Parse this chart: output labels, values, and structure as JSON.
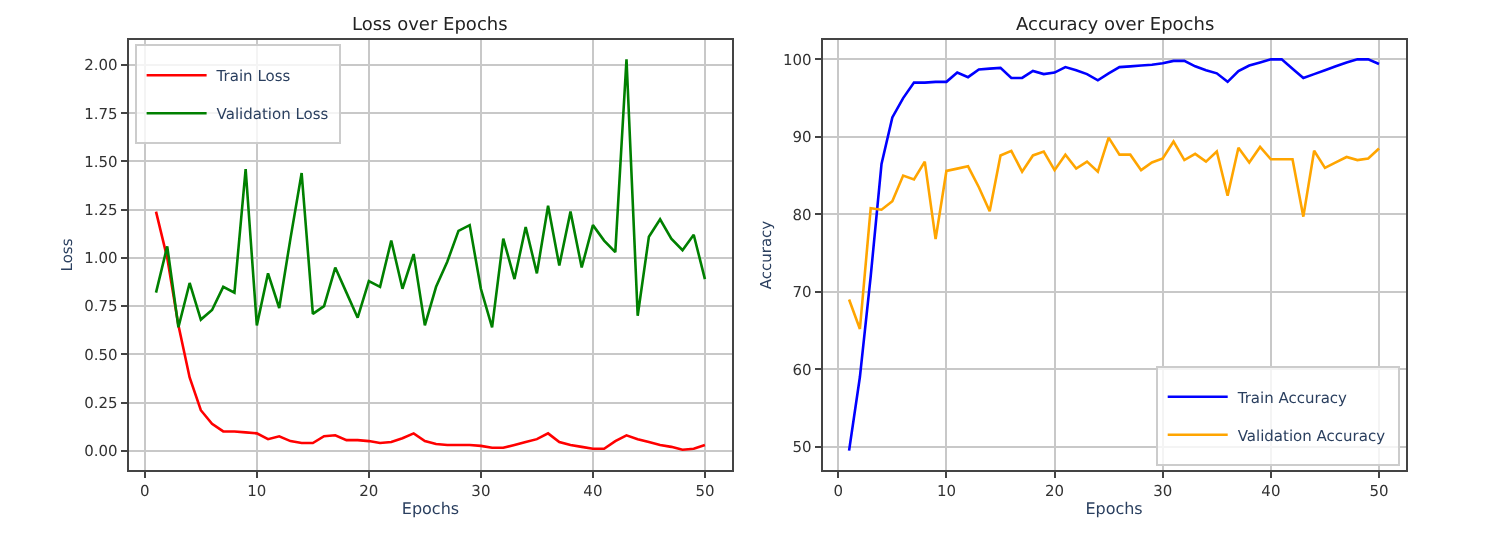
{
  "chart_data": [
    {
      "type": "line",
      "title": "Loss over Epochs",
      "xlabel": "Epochs",
      "ylabel": "Loss",
      "x": [
        1,
        2,
        3,
        4,
        5,
        6,
        7,
        8,
        9,
        10,
        11,
        12,
        13,
        14,
        15,
        16,
        17,
        18,
        19,
        20,
        21,
        22,
        23,
        24,
        25,
        26,
        27,
        28,
        29,
        30,
        31,
        32,
        33,
        34,
        35,
        36,
        37,
        38,
        39,
        40,
        41,
        42,
        43,
        44,
        45,
        46,
        47,
        48,
        49,
        50
      ],
      "series": [
        {
          "name": "Train Loss",
          "color": "#ff0000",
          "values": [
            1.24,
            1.0,
            0.65,
            0.38,
            0.21,
            0.14,
            0.1,
            0.1,
            0.095,
            0.09,
            0.06,
            0.075,
            0.05,
            0.04,
            0.04,
            0.075,
            0.08,
            0.055,
            0.055,
            0.05,
            0.04,
            0.045,
            0.065,
            0.09,
            0.05,
            0.035,
            0.03,
            0.03,
            0.03,
            0.025,
            0.015,
            0.015,
            0.03,
            0.045,
            0.06,
            0.09,
            0.045,
            0.03,
            0.02,
            0.01,
            0.01,
            0.05,
            0.08,
            0.06,
            0.045,
            0.03,
            0.02,
            0.005,
            0.01,
            0.03
          ]
        },
        {
          "name": "Validation Loss",
          "color": "#008000",
          "values": [
            0.82,
            1.06,
            0.64,
            0.87,
            0.68,
            0.73,
            0.85,
            0.82,
            1.46,
            0.65,
            0.92,
            0.74,
            1.1,
            1.44,
            0.71,
            0.75,
            0.95,
            0.82,
            0.69,
            0.88,
            0.85,
            1.09,
            0.84,
            1.02,
            0.65,
            0.85,
            0.98,
            1.14,
            1.17,
            0.84,
            0.64,
            1.1,
            0.89,
            1.16,
            0.92,
            1.27,
            0.96,
            1.24,
            0.95,
            1.17,
            1.09,
            1.03,
            2.03,
            0.7,
            1.11,
            1.2,
            1.1,
            1.04,
            1.12,
            0.89
          ]
        }
      ],
      "xlim": [
        -1.45,
        52.45
      ],
      "xticks": [
        0,
        10,
        20,
        30,
        40,
        50
      ],
      "ylim": [
        -0.1,
        2.13
      ],
      "yticks": [
        {
          "value": 0,
          "label": "0.00"
        },
        {
          "value": 0.25,
          "label": "0.25"
        },
        {
          "value": 0.5,
          "label": "0.50"
        },
        {
          "value": 0.75,
          "label": "0.75"
        },
        {
          "value": 1,
          "label": "1.00"
        },
        {
          "value": 1.25,
          "label": "1.25"
        },
        {
          "value": 1.5,
          "label": "1.50"
        },
        {
          "value": 1.75,
          "label": "1.75"
        },
        {
          "value": 2,
          "label": "2.00"
        }
      ],
      "grid": true,
      "legend": "top left",
      "marker": "none",
      "line_style": "solid"
    },
    {
      "type": "line",
      "title": "Accuracy over Epochs",
      "xlabel": "Epochs",
      "ylabel": "Accuracy",
      "x": [
        1,
        2,
        3,
        4,
        5,
        6,
        7,
        8,
        9,
        10,
        11,
        12,
        13,
        14,
        15,
        16,
        17,
        18,
        19,
        20,
        21,
        22,
        23,
        24,
        25,
        26,
        27,
        28,
        29,
        30,
        31,
        32,
        33,
        34,
        35,
        36,
        37,
        38,
        39,
        40,
        41,
        42,
        43,
        44,
        45,
        46,
        47,
        48,
        49,
        50
      ],
      "series": [
        {
          "name": "Train Accuracy",
          "color": "#0000ff",
          "values": [
            49.5,
            59,
            72,
            86.5,
            92.5,
            95,
            97,
            97,
            97.1,
            97.1,
            98.3,
            97.7,
            98.7,
            98.8,
            98.9,
            97.6,
            97.6,
            98.5,
            98.1,
            98.3,
            99,
            98.6,
            98.1,
            97.3,
            98.2,
            99,
            99.1,
            99.2,
            99.3,
            99.5,
            99.8,
            99.8,
            99.1,
            98.6,
            98.2,
            97.1,
            98.5,
            99.2,
            99.6,
            100,
            100,
            98.8,
            97.6,
            98.1,
            98.6,
            99.1,
            99.6,
            100,
            100,
            99.4
          ]
        },
        {
          "name": "Validation Accuracy",
          "color": "#ffa500",
          "values": [
            69,
            65.2,
            80.8,
            80.6,
            81.7,
            85,
            84.5,
            86.8,
            76.8,
            85.6,
            85.9,
            86.2,
            83.5,
            80.4,
            87.6,
            88.2,
            85.5,
            87.6,
            88.1,
            85.7,
            87.7,
            85.9,
            86.8,
            85.5,
            89.9,
            87.7,
            87.7,
            85.7,
            86.7,
            87.2,
            89.4,
            87,
            87.8,
            86.8,
            88.1,
            82.4,
            88.6,
            86.7,
            88.7,
            87.1,
            87.1,
            87.1,
            79.7,
            88.2,
            86,
            86.7,
            87.4,
            87,
            87.2,
            88.5
          ]
        }
      ],
      "xlim": [
        -1.45,
        52.45
      ],
      "xticks": [
        0,
        10,
        20,
        30,
        40,
        50
      ],
      "ylim": [
        47,
        102.5
      ],
      "yticks": [
        50,
        60,
        70,
        80,
        90,
        100
      ],
      "grid": true,
      "legend": "bottom right",
      "marker": "none",
      "line_style": "solid"
    }
  ]
}
